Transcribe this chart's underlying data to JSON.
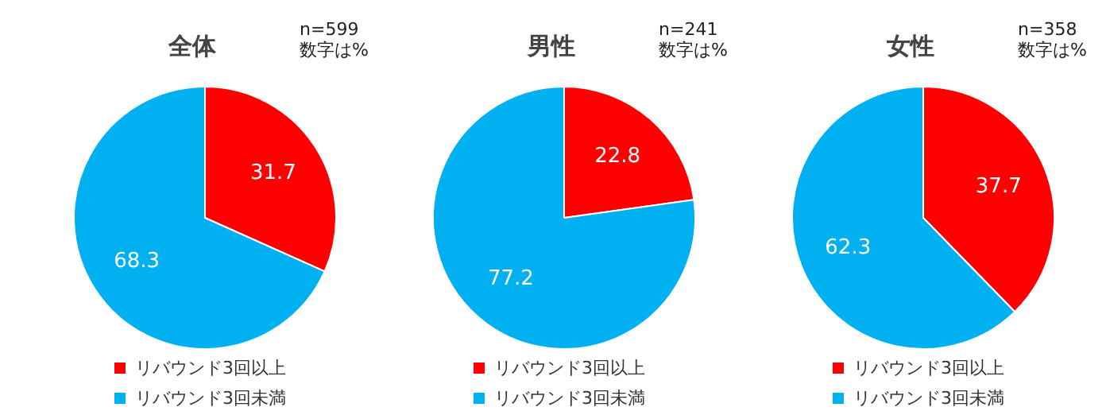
{
  "chart_data": [
    {
      "type": "pie",
      "title": "全体",
      "annotations": [
        "n=599",
        "数字は%"
      ],
      "categories": [
        "リバウンド3回以上",
        "リバウンド3回未満"
      ],
      "values": [
        31.7,
        68.3
      ],
      "colors": [
        "#ff0000",
        "#00b0f0"
      ],
      "data_labels": true,
      "legend": "bottom"
    },
    {
      "type": "pie",
      "title": "男性",
      "annotations": [
        "n=241",
        "数字は%"
      ],
      "categories": [
        "リバウンド3回以上",
        "リバウンド3回未満"
      ],
      "values": [
        22.8,
        77.2
      ],
      "colors": [
        "#ff0000",
        "#00b0f0"
      ],
      "data_labels": true,
      "legend": "bottom"
    },
    {
      "type": "pie",
      "title": "女性",
      "annotations": [
        "n=358",
        "数字は%"
      ],
      "categories": [
        "リバウンド3回以上",
        "リバウンド3回未満"
      ],
      "values": [
        37.7,
        62.3
      ],
      "colors": [
        "#ff0000",
        "#00b0f0"
      ],
      "data_labels": true,
      "legend": "bottom"
    }
  ]
}
